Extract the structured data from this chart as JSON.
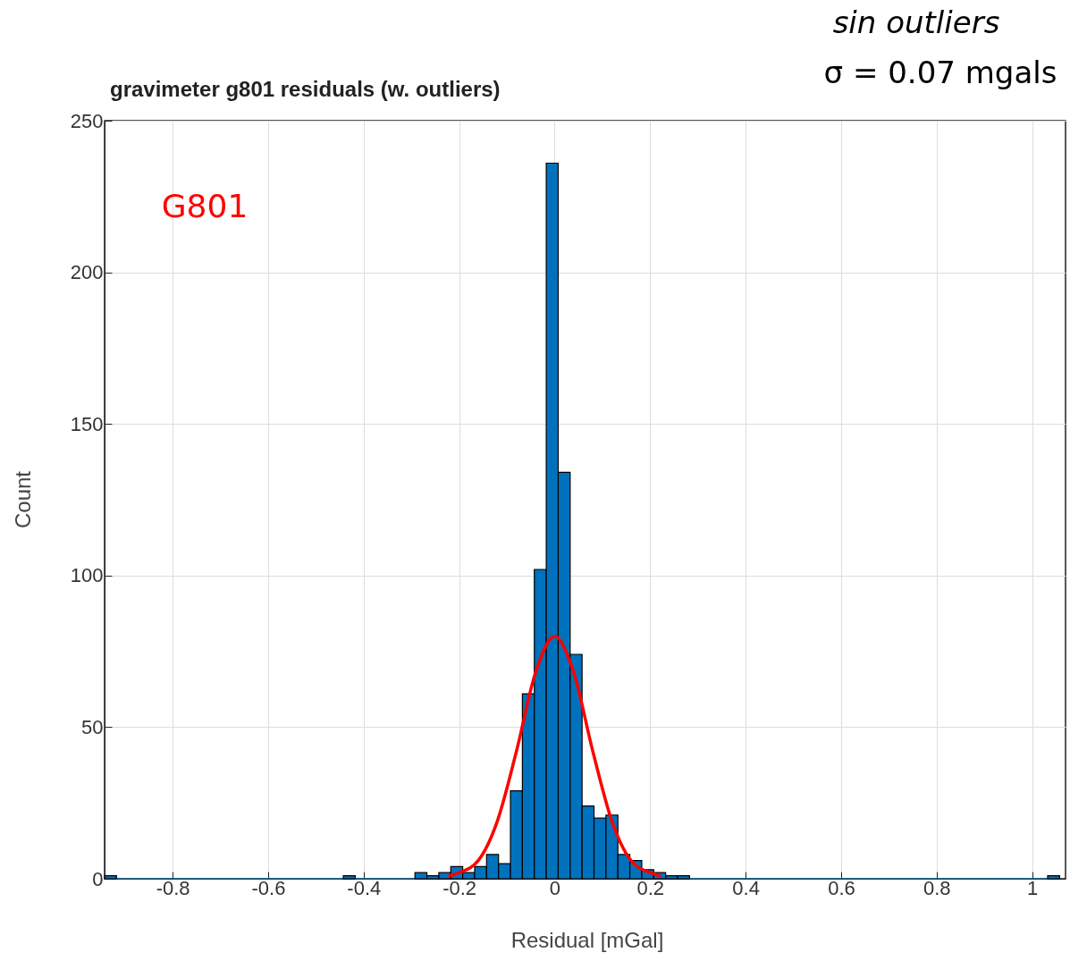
{
  "chart_data": {
    "type": "histogram",
    "title": "gravimeter g801  residuals (w. outliers)",
    "xlabel": "Residual [mGal]",
    "ylabel": "Count",
    "annotations": [
      "G801",
      "sin outliers",
      "σ = 0.07 mgals"
    ],
    "xlim": [
      -0.9425,
      1.07
    ],
    "ylim": [
      0,
      250
    ],
    "xticks": [
      -0.8,
      -0.6,
      -0.4,
      -0.2,
      0,
      0.2,
      0.4,
      0.6,
      0.8,
      1
    ],
    "yticks": [
      0,
      50,
      100,
      150,
      200,
      250
    ],
    "grid": true,
    "series": [
      {
        "color": "#0072bd",
        "bins": [
          -0.9425,
          -0.9175,
          -0.8925,
          -0.8675,
          -0.8425,
          -0.8175,
          -0.7925,
          -0.7675,
          -0.7425,
          -0.7175,
          -0.6925,
          -0.6675,
          -0.6425,
          -0.6175,
          -0.5925,
          -0.5675,
          -0.5425,
          -0.5175,
          -0.4925,
          -0.4675,
          -0.4425,
          -0.4175,
          -0.3925,
          -0.3675,
          -0.3425,
          -0.3175,
          -0.2925,
          -0.2675,
          -0.2425,
          -0.2175,
          -0.1925,
          -0.1675,
          -0.1425,
          -0.1175,
          -0.0925,
          -0.0675,
          -0.0425,
          -0.0175,
          0.0075,
          0.0325,
          0.0575,
          0.0825,
          0.1075,
          0.1325,
          0.1575,
          0.1825,
          0.2075,
          0.2325,
          0.2575,
          0.2825,
          0.3075,
          0.3325,
          0.3575,
          0.3825,
          0.4075,
          0.4325,
          0.4575,
          0.4825,
          0.5075,
          0.5325,
          0.5575,
          0.5825,
          0.6075,
          0.6325,
          0.6575,
          0.6825,
          0.7075,
          0.7325,
          0.7575,
          0.7825,
          0.8075,
          0.8325,
          0.8575,
          0.8825,
          0.9075,
          0.9325,
          0.9575,
          0.9825,
          1.0075,
          1.0325,
          1.0575
        ],
        "values": [
          1,
          0,
          0,
          0,
          0,
          0,
          0,
          0,
          0,
          0,
          0,
          0,
          0,
          0,
          0,
          0,
          0,
          0,
          0,
          0,
          1,
          0,
          0,
          0,
          0,
          0,
          2,
          1,
          2,
          4,
          2,
          4,
          8,
          5,
          29,
          61,
          102,
          236,
          134,
          74,
          24,
          20,
          21,
          8,
          6,
          3,
          2,
          1,
          1,
          0,
          0,
          0,
          0,
          0,
          0,
          0,
          0,
          0,
          0,
          0,
          0,
          0,
          0,
          0,
          0,
          0,
          0,
          0,
          0,
          0,
          0,
          0,
          0,
          0,
          0,
          0,
          0,
          0,
          0,
          1
        ]
      },
      {
        "type": "line",
        "color": "#ff0000",
        "x": [
          -0.22,
          -0.2,
          -0.16,
          -0.12,
          -0.08,
          -0.04,
          0,
          0.04,
          0.08,
          0.12,
          0.16,
          0.2,
          0.22
        ],
        "values": [
          1,
          2,
          6,
          19,
          42,
          68,
          80,
          68,
          42,
          19,
          6,
          2,
          1
        ]
      }
    ]
  }
}
